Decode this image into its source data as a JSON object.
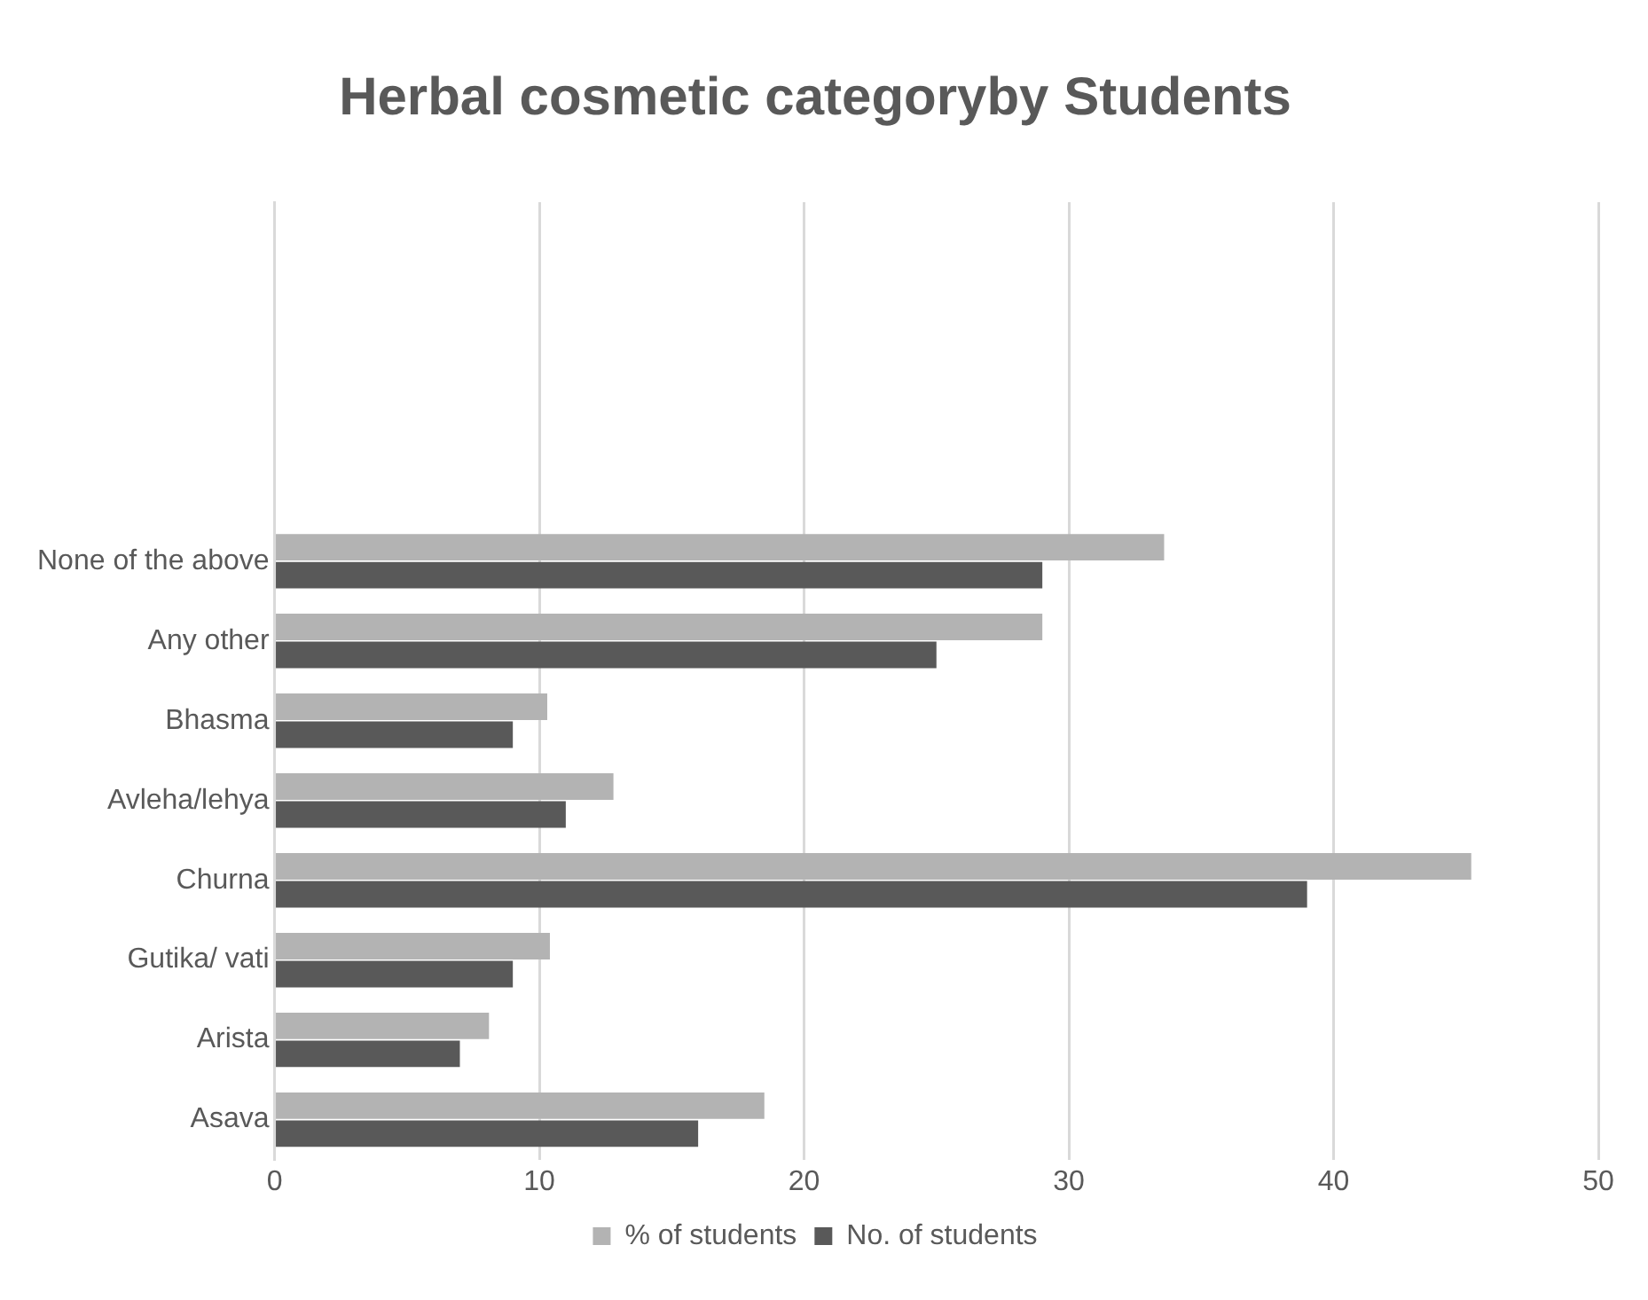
{
  "chart_data": {
    "type": "bar",
    "orientation": "horizontal",
    "title": "Herbal cosmetic categoryby Students",
    "categories": [
      null,
      null,
      null,
      null,
      "None of the above",
      "Any other",
      "Bhasma",
      "Avleha/lehya",
      "Churna",
      "Gutika/ vati",
      "Arista",
      "Asava"
    ],
    "series": [
      {
        "name": "% of students",
        "color": "#b3b3b3",
        "values": [
          null,
          null,
          null,
          null,
          33.6,
          29.0,
          10.3,
          12.8,
          45.2,
          10.4,
          8.1,
          18.5
        ]
      },
      {
        "name": "No. of students",
        "color": "#595959",
        "values": [
          null,
          null,
          null,
          null,
          29,
          25,
          9,
          11,
          39,
          9,
          7,
          16
        ]
      }
    ],
    "xlim": [
      0,
      50
    ],
    "xticks": [
      0,
      10,
      20,
      30,
      40,
      50
    ],
    "grid": "x",
    "legend": "bottom"
  }
}
